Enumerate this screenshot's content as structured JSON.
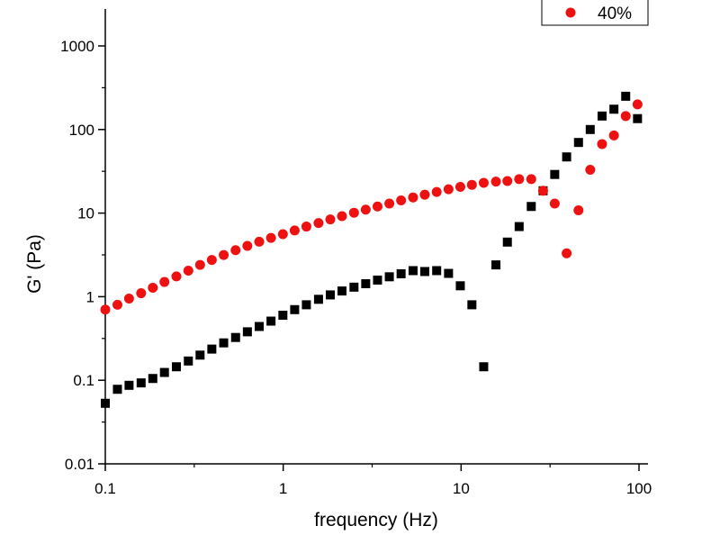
{
  "chart_data": {
    "type": "scatter",
    "xlabel": "frequency (Hz)",
    "ylabel": "G' (Pa)",
    "x_scale": "log",
    "y_scale": "log",
    "xlim": [
      0.1,
      100
    ],
    "ylim": [
      0.01,
      2000
    ],
    "x_ticks": [
      {
        "value": 0.1,
        "label": "0.1"
      },
      {
        "value": 1,
        "label": "1"
      },
      {
        "value": 10,
        "label": "10"
      },
      {
        "value": 100,
        "label": "100"
      }
    ],
    "y_ticks": [
      {
        "value": 0.01,
        "label": "0.01"
      },
      {
        "value": 0.1,
        "label": "0.1"
      },
      {
        "value": 1,
        "label": "1"
      },
      {
        "value": 10,
        "label": "10"
      },
      {
        "value": 100,
        "label": "100"
      },
      {
        "value": 1000,
        "label": "1000"
      }
    ],
    "grid": false,
    "legend": {
      "placement": "top-right"
    },
    "series": [
      {
        "name": "",
        "marker": "square",
        "color": "#000000",
        "x": [
          0.1,
          0.117,
          0.136,
          0.159,
          0.185,
          0.215,
          0.251,
          0.293,
          0.341,
          0.397,
          0.463,
          0.54,
          0.629,
          0.733,
          0.854,
          0.996,
          1.16,
          1.35,
          1.58,
          1.84,
          2.14,
          2.5,
          2.91,
          3.39,
          3.95,
          4.6,
          5.37,
          6.25,
          7.29,
          8.5,
          9.9,
          11.5,
          13.4,
          15.7,
          18.2,
          21.2,
          24.8,
          28.9,
          33.6,
          39.2,
          45.7,
          53.2,
          62,
          72.3,
          84.2,
          98.1
        ],
        "y": [
          0.053,
          0.078,
          0.087,
          0.093,
          0.105,
          0.124,
          0.145,
          0.17,
          0.2,
          0.236,
          0.28,
          0.325,
          0.38,
          0.44,
          0.51,
          0.6,
          0.7,
          0.8,
          0.93,
          1.05,
          1.17,
          1.3,
          1.43,
          1.58,
          1.73,
          1.88,
          2.05,
          2.0,
          2.05,
          1.9,
          1.35,
          0.8,
          0.145,
          2.4,
          4.5,
          6.9,
          12,
          18.5,
          29,
          47,
          70,
          100,
          145,
          175,
          250,
          135
        ]
      },
      {
        "name": "40%",
        "marker": "circle",
        "color": "#ee1111",
        "x": [
          0.1,
          0.117,
          0.136,
          0.159,
          0.185,
          0.215,
          0.251,
          0.293,
          0.341,
          0.397,
          0.463,
          0.54,
          0.629,
          0.733,
          0.854,
          0.996,
          1.16,
          1.35,
          1.58,
          1.84,
          2.14,
          2.5,
          2.91,
          3.39,
          3.95,
          4.6,
          5.37,
          6.25,
          7.29,
          8.5,
          9.9,
          11.5,
          13.4,
          15.7,
          18.2,
          21.2,
          24.8,
          28.9,
          33.6,
          39.2,
          45.7,
          53.2,
          62,
          72.3,
          84.2,
          98.1
        ],
        "y": [
          0.7,
          0.8,
          0.95,
          1.1,
          1.28,
          1.5,
          1.75,
          2.05,
          2.4,
          2.75,
          3.15,
          3.6,
          4.05,
          4.55,
          5.05,
          5.6,
          6.2,
          6.9,
          7.6,
          8.4,
          9.2,
          10.1,
          11,
          12,
          13,
          14.2,
          15.4,
          16.6,
          17.9,
          19.3,
          20.6,
          21.8,
          23,
          23.8,
          24.2,
          25.5,
          25.5,
          18.5,
          13,
          3.3,
          10.8,
          33,
          67,
          85,
          145,
          200
        ]
      }
    ]
  }
}
